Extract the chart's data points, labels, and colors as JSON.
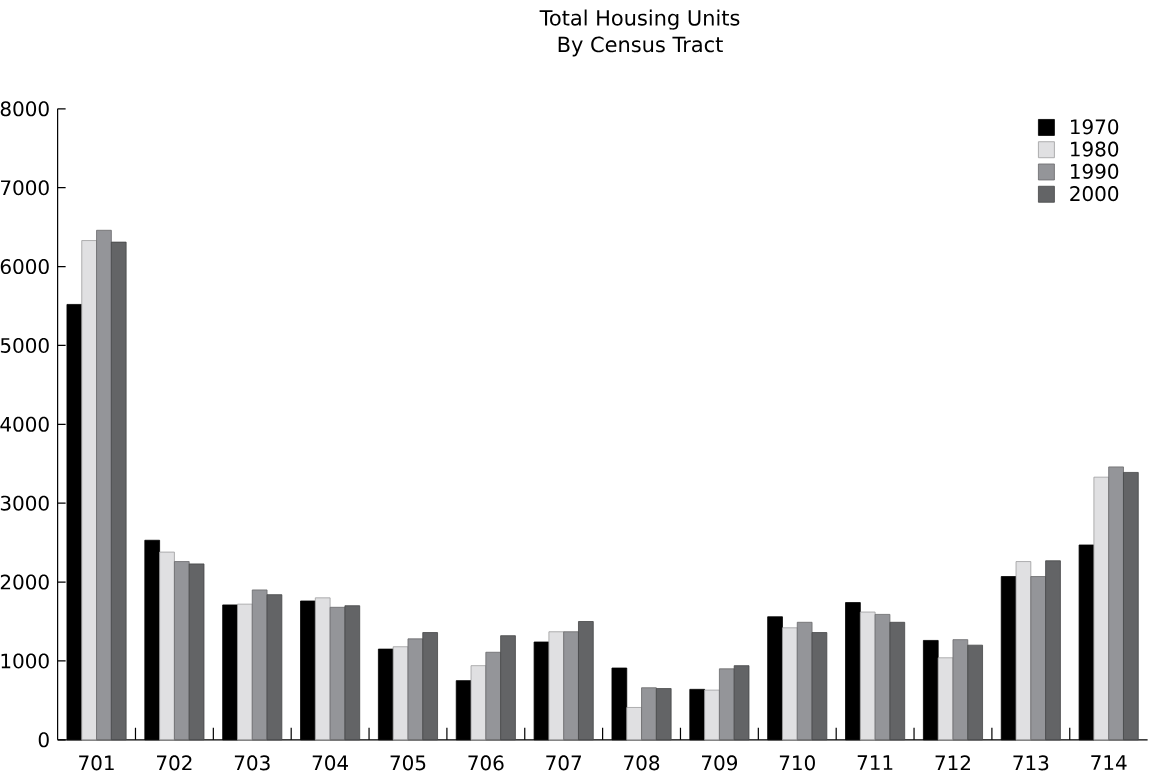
{
  "chart_data": {
    "type": "bar",
    "title": "Total Housing Units",
    "subtitle": "By Census Tract",
    "categories": [
      "701",
      "702",
      "703",
      "704",
      "705",
      "706",
      "707",
      "708",
      "709",
      "710",
      "711",
      "712",
      "713",
      "714"
    ],
    "series": [
      {
        "name": "1970",
        "color": "#000000",
        "values": [
          5520,
          2530,
          1710,
          1760,
          1150,
          750,
          1240,
          910,
          640,
          1560,
          1740,
          1260,
          2070,
          2470
        ]
      },
      {
        "name": "1980",
        "color": "#e0e0e2",
        "values": [
          6330,
          2380,
          1720,
          1800,
          1180,
          940,
          1370,
          410,
          630,
          1420,
          1620,
          1040,
          2260,
          3330
        ]
      },
      {
        "name": "1990",
        "color": "#949599",
        "values": [
          6460,
          2260,
          1900,
          1680,
          1280,
          1110,
          1370,
          660,
          900,
          1490,
          1590,
          1270,
          2070,
          3460
        ]
      },
      {
        "name": "2000",
        "color": "#636466",
        "values": [
          6310,
          2230,
          1840,
          1700,
          1360,
          1320,
          1500,
          650,
          940,
          1360,
          1490,
          1200,
          2270,
          3390
        ]
      }
    ],
    "ylim": [
      0,
      8000
    ],
    "yticks": [
      0,
      1000,
      2000,
      3000,
      4000,
      5000,
      6000,
      7000,
      8000
    ],
    "grid": false,
    "legend": "top right"
  }
}
